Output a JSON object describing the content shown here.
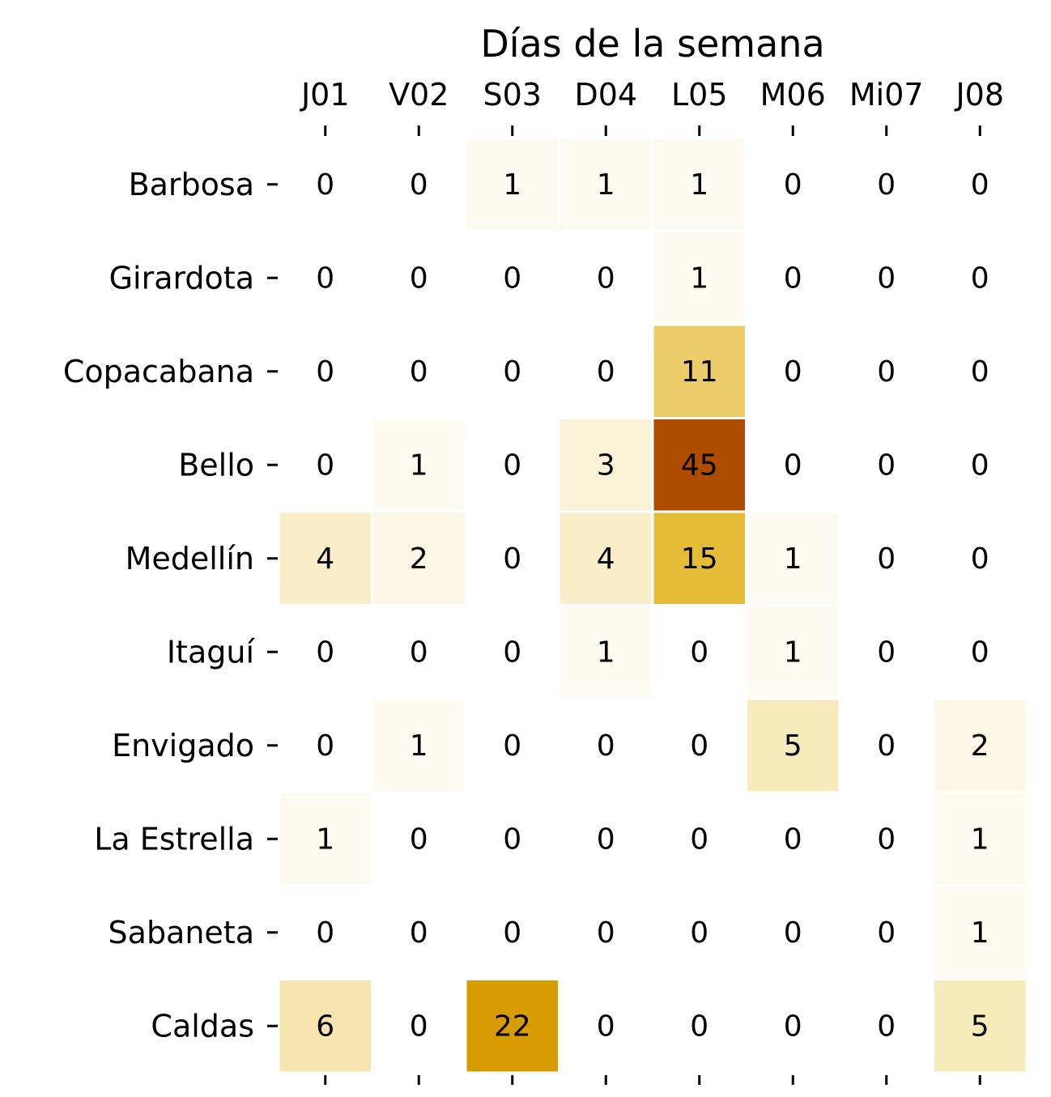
{
  "chart_data": {
    "type": "heatmap",
    "title": "Días de la semana",
    "xlabel": "",
    "ylabel": "",
    "x_axis_position": "top",
    "columns": [
      "J01",
      "V02",
      "S03",
      "D04",
      "L05",
      "M06",
      "Mi07",
      "J08"
    ],
    "rows": [
      "Barbosa",
      "Girardota",
      "Copacabana",
      "Bello",
      "Medellín",
      "Itaguí",
      "Envigado",
      "La Estrella",
      "Sabaneta",
      "Caldas"
    ],
    "values": [
      [
        0,
        0,
        1,
        1,
        1,
        0,
        0,
        0
      ],
      [
        0,
        0,
        0,
        0,
        1,
        0,
        0,
        0
      ],
      [
        0,
        0,
        0,
        0,
        11,
        0,
        0,
        0
      ],
      [
        0,
        1,
        0,
        3,
        45,
        0,
        0,
        0
      ],
      [
        4,
        2,
        0,
        4,
        15,
        1,
        0,
        0
      ],
      [
        0,
        0,
        0,
        1,
        0,
        1,
        0,
        0
      ],
      [
        0,
        1,
        0,
        0,
        0,
        5,
        0,
        2
      ],
      [
        1,
        0,
        0,
        0,
        0,
        0,
        0,
        1
      ],
      [
        0,
        0,
        0,
        0,
        0,
        0,
        0,
        1
      ],
      [
        6,
        0,
        22,
        0,
        0,
        0,
        0,
        5
      ]
    ],
    "colorbar": false,
    "grid": false,
    "zero_cells_colored": false,
    "colormap": "white-to-gold-to-brown",
    "value_range": [
      0,
      45
    ],
    "color_stops": [
      "#ffffff",
      "#f6e6b0",
      "#ebc85a",
      "#e0b419",
      "#d69a00",
      "#ae4c00"
    ]
  }
}
